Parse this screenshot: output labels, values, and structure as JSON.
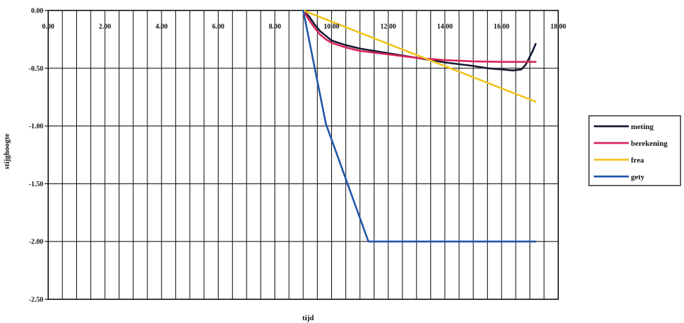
{
  "chart_data": {
    "type": "line",
    "title": "",
    "xlabel": "tijd",
    "ylabel": "stijghoogte",
    "xlim": [
      0,
      18
    ],
    "ylim": [
      -2.5,
      0
    ],
    "x_ticks": [
      "0.00",
      "2.00",
      "4.00",
      "6.00",
      "8.00",
      "10.00",
      "12.00",
      "14.00",
      "16.00",
      "18.00"
    ],
    "y_ticks": [
      "0.00",
      "-0.50",
      "-1.00",
      "-1.50",
      "-2.00",
      "-2.50"
    ],
    "x_tick_values": [
      0,
      2,
      4,
      6,
      8,
      10,
      12,
      14,
      16,
      18
    ],
    "y_tick_values": [
      0,
      -0.5,
      -1.0,
      -1.5,
      -2.0,
      -2.5
    ],
    "minor_x_step": 0.5,
    "grid": true,
    "legend_position": "right",
    "series": [
      {
        "name": "meting",
        "color": "#141a33",
        "points": [
          [
            9.0,
            0.0
          ],
          [
            9.2,
            -0.05
          ],
          [
            9.4,
            -0.12
          ],
          [
            9.6,
            -0.18
          ],
          [
            9.8,
            -0.22
          ],
          [
            10.0,
            -0.26
          ],
          [
            10.5,
            -0.3
          ],
          [
            11.0,
            -0.33
          ],
          [
            12.0,
            -0.37
          ],
          [
            13.0,
            -0.41
          ],
          [
            14.0,
            -0.45
          ],
          [
            15.0,
            -0.48
          ],
          [
            15.5,
            -0.5
          ],
          [
            16.0,
            -0.51
          ],
          [
            16.4,
            -0.52
          ],
          [
            16.7,
            -0.51
          ],
          [
            16.85,
            -0.47
          ],
          [
            17.0,
            -0.4
          ],
          [
            17.1,
            -0.35
          ],
          [
            17.2,
            -0.29
          ]
        ]
      },
      {
        "name": "berekening",
        "color": "#d8245a",
        "points": [
          [
            9.0,
            0.0
          ],
          [
            9.2,
            -0.08
          ],
          [
            9.4,
            -0.15
          ],
          [
            9.6,
            -0.21
          ],
          [
            9.8,
            -0.25
          ],
          [
            10.0,
            -0.28
          ],
          [
            10.5,
            -0.32
          ],
          [
            11.0,
            -0.35
          ],
          [
            12.0,
            -0.38
          ],
          [
            13.0,
            -0.41
          ],
          [
            14.0,
            -0.43
          ],
          [
            15.0,
            -0.44
          ],
          [
            16.0,
            -0.445
          ],
          [
            17.2,
            -0.445
          ]
        ]
      },
      {
        "name": "frea",
        "color": "#f2c31c",
        "points": [
          [
            9.0,
            0.0
          ],
          [
            17.2,
            -0.79
          ]
        ]
      },
      {
        "name": "gety",
        "color": "#1f56a8",
        "points": [
          [
            9.0,
            0.0
          ],
          [
            9.8,
            -0.98
          ],
          [
            11.3,
            -2.0
          ],
          [
            17.2,
            -2.0
          ]
        ]
      }
    ]
  }
}
